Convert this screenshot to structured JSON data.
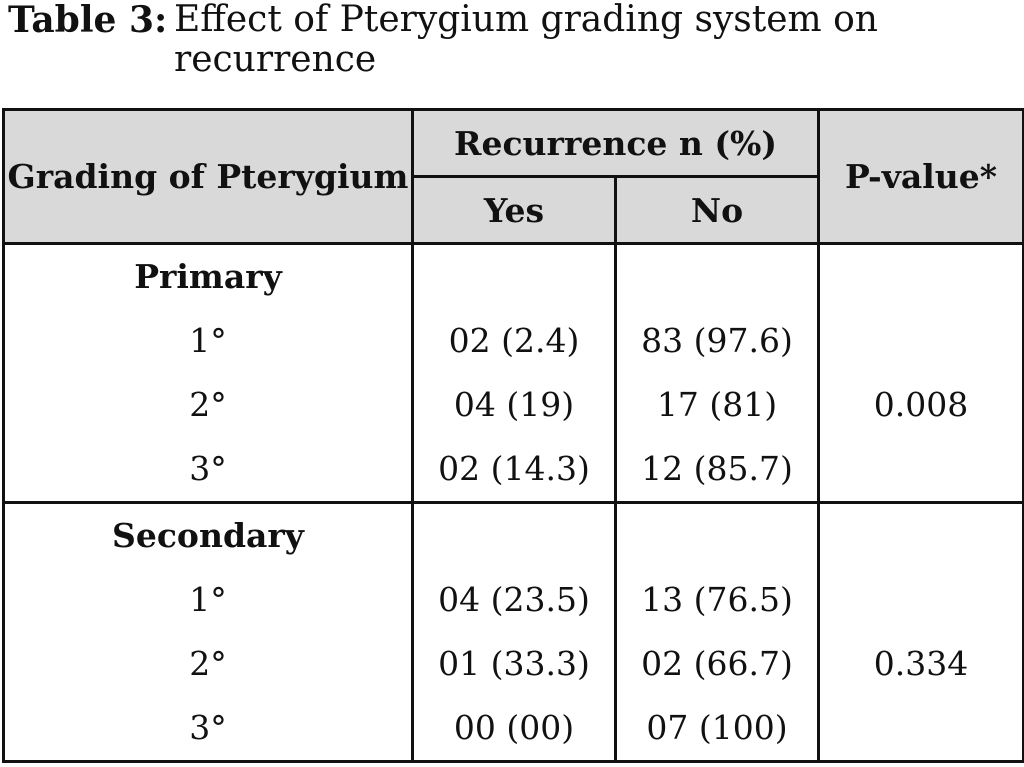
{
  "caption": {
    "label": "Table 3:",
    "text": "Effect of Pterygium grading system on recurrence"
  },
  "header": {
    "col1": "Grading of Pterygium",
    "group": "Recurrence n (%)",
    "yes": "Yes",
    "no": "No",
    "pvalue": "P-value*"
  },
  "groups": [
    {
      "name": "Primary",
      "pvalue": "0.008",
      "rows": [
        {
          "grade": "1°",
          "yes": "02 (2.4)",
          "no": "83 (97.6)"
        },
        {
          "grade": "2°",
          "yes": "04 (19)",
          "no": "17 (81)"
        },
        {
          "grade": "3°",
          "yes": "02 (14.3)",
          "no": "12 (85.7)"
        }
      ]
    },
    {
      "name": "Secondary",
      "pvalue": "0.334",
      "rows": [
        {
          "grade": "1°",
          "yes": "04 (23.5)",
          "no": "13 (76.5)"
        },
        {
          "grade": "2°",
          "yes": "01 (33.3)",
          "no": "02 (66.7)"
        },
        {
          "grade": "3°",
          "yes": "00 (00)",
          "no": "07 (100)"
        }
      ]
    }
  ]
}
